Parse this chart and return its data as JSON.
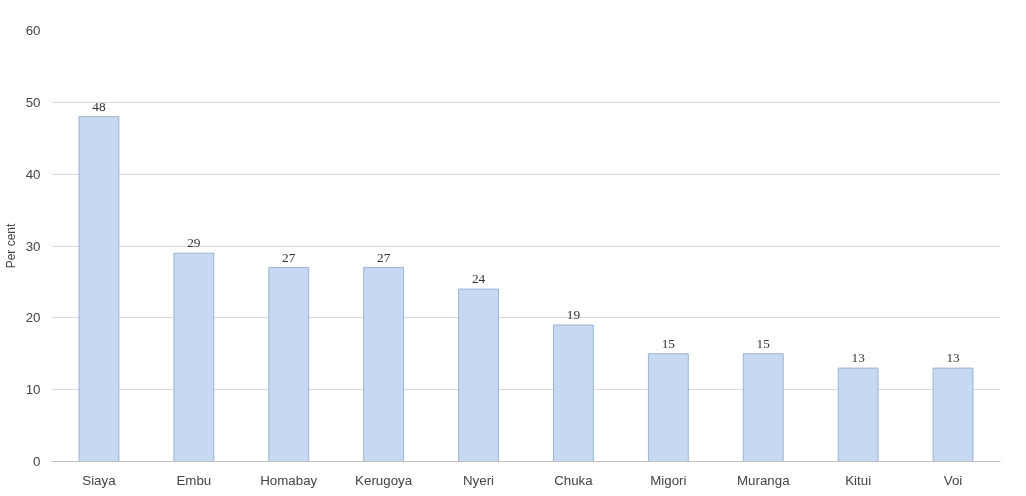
{
  "chart_data": {
    "type": "bar",
    "ylabel": "Per cent",
    "categories": [
      "Siaya",
      "Embu",
      "Homabay",
      "Kerugoya",
      "Nyeri",
      "Chuka",
      "Migori",
      "Muranga",
      "Kitui",
      "Voi"
    ],
    "values": [
      48,
      29,
      27,
      27,
      24,
      19,
      15,
      15,
      13,
      13
    ],
    "color": "#c6d9f1",
    "ylim": [
      0,
      60
    ],
    "yticks": [
      0,
      10,
      20,
      30,
      40,
      50,
      60
    ],
    "grid": "y",
    "data_labels": true
  }
}
